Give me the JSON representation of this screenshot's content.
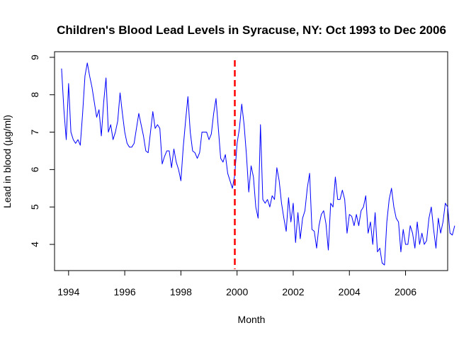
{
  "chart_data": {
    "type": "line",
    "title": "Children's Blood Lead Levels in Syracuse, NY: Oct 1993 to Dec 2006",
    "xlabel": "Month",
    "ylabel": "Lead in blood (µg/ml)",
    "xlim": [
      1993.5,
      2007.5
    ],
    "ylim": [
      3.3,
      9.15
    ],
    "x_ticks": [
      1994,
      1996,
      1998,
      2000,
      2002,
      2004,
      2006
    ],
    "x_tick_labels": [
      "1994",
      "1996",
      "1998",
      "2000",
      "2002",
      "2004",
      "2006"
    ],
    "y_ticks": [
      4,
      5,
      6,
      7,
      8,
      9
    ],
    "y_tick_labels": [
      "4",
      "5",
      "6",
      "7",
      "8",
      "9"
    ],
    "grid": false,
    "series": [
      {
        "color": "#0000ff",
        "x_start": 1993.75,
        "x_step": 0.0833333,
        "values": [
          8.7,
          7.6,
          6.8,
          8.3,
          7.0,
          6.8,
          6.7,
          6.8,
          6.65,
          7.5,
          8.5,
          8.85,
          8.5,
          8.2,
          7.8,
          7.4,
          7.6,
          6.9,
          7.8,
          8.45,
          7.0,
          7.2,
          6.8,
          7.0,
          7.3,
          8.05,
          7.5,
          7.0,
          6.7,
          6.6,
          6.6,
          6.7,
          7.1,
          7.5,
          7.2,
          6.9,
          6.5,
          6.45,
          7.0,
          7.55,
          7.1,
          7.2,
          7.1,
          6.15,
          6.35,
          6.5,
          6.5,
          6.05,
          6.55,
          6.2,
          6.0,
          5.7,
          6.6,
          7.3,
          7.95,
          7.0,
          6.5,
          6.45,
          6.3,
          6.45,
          7.0,
          7.0,
          7.0,
          6.8,
          6.95,
          7.5,
          7.9,
          7.1,
          6.3,
          6.2,
          6.4,
          5.9,
          5.7,
          5.5,
          5.85,
          6.7,
          7.1,
          7.75,
          7.2,
          6.4,
          5.4,
          6.1,
          5.8,
          5.0,
          4.7,
          7.2,
          5.2,
          5.1,
          5.2,
          5.0,
          5.3,
          5.2,
          6.05,
          5.7,
          5.1,
          4.7,
          4.35,
          5.25,
          4.6,
          5.1,
          4.05,
          4.85,
          4.15,
          4.7,
          4.9,
          5.5,
          5.9,
          4.4,
          4.35,
          3.9,
          4.5,
          4.8,
          4.9,
          4.55,
          3.85,
          5.1,
          5.0,
          5.8,
          5.2,
          5.2,
          5.45,
          5.2,
          4.3,
          4.8,
          4.75,
          4.5,
          4.8,
          4.5,
          4.9,
          5.0,
          5.3,
          4.3,
          4.6,
          4.0,
          4.85,
          3.8,
          3.9,
          3.5,
          3.45,
          4.6,
          5.2,
          5.5,
          5.0,
          4.7,
          4.6,
          3.8,
          4.4,
          4.0,
          4.0,
          4.5,
          4.3,
          3.9,
          4.6,
          4.0,
          4.3,
          4.0,
          4.1,
          4.7,
          5.0,
          4.4,
          3.9,
          4.7,
          4.3,
          4.6,
          5.1,
          5.0,
          4.3,
          4.25,
          4.5
        ]
      }
    ],
    "annotations": [
      {
        "type": "vline",
        "x": 1999.92,
        "color": "#ff0000",
        "style": "dashed"
      }
    ]
  }
}
